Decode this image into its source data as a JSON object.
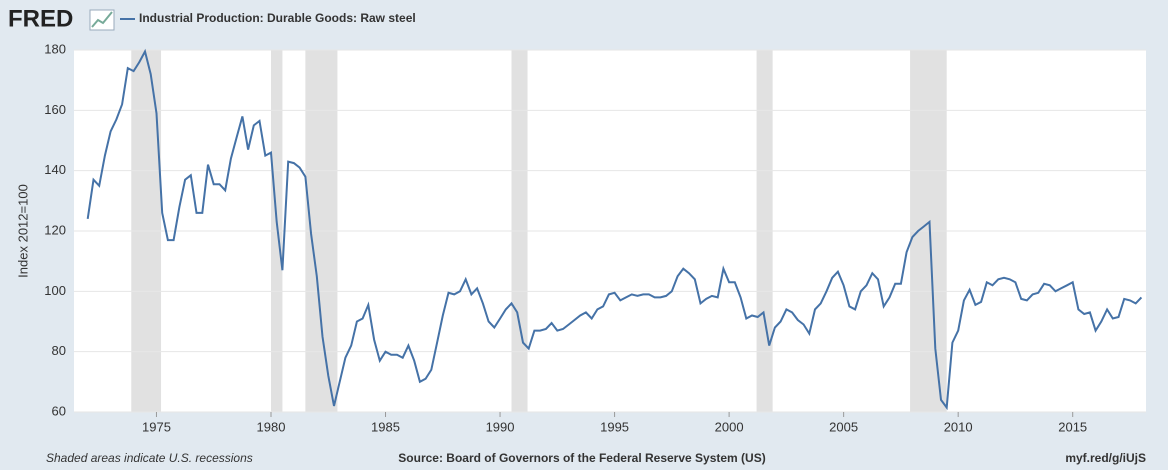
{
  "logo": "FRED",
  "chart_data": {
    "type": "line",
    "ylabel": "Index 2012=100",
    "series": [
      {
        "name": "Industrial Production: Durable Goods: Raw steel",
        "color": "#4572a7",
        "values": [
          124,
          137,
          135,
          145,
          153,
          157,
          162,
          174,
          173,
          176,
          179.5,
          172,
          159,
          126,
          117,
          117,
          128,
          137,
          138.5,
          126,
          126,
          142,
          135.5,
          135.5,
          133.5,
          144,
          151,
          158,
          147,
          155,
          156.5,
          145,
          146,
          123,
          107,
          143,
          142.5,
          141,
          138,
          119,
          105,
          85,
          72,
          62,
          70,
          78,
          82,
          90,
          91,
          95.5,
          84,
          77,
          80,
          79,
          79,
          78,
          82,
          77,
          70,
          71,
          74,
          83,
          92,
          99.5,
          99,
          100,
          104,
          99,
          101,
          96,
          90,
          88,
          91,
          94,
          96,
          93,
          83,
          81,
          87,
          87,
          87.5,
          89.5,
          87,
          87.5,
          89,
          90.5,
          92,
          93,
          91,
          94,
          95,
          99,
          99.5,
          97,
          98,
          99,
          98.5,
          99,
          99,
          98,
          98,
          98.5,
          100,
          105,
          107.5,
          106,
          104,
          96,
          97.5,
          98.5,
          98,
          107.5,
          103,
          103,
          98,
          91,
          92,
          91.5,
          93,
          82,
          88,
          90,
          94,
          93,
          90.5,
          89,
          86,
          94,
          96,
          100,
          104.5,
          106.5,
          102,
          95,
          94,
          100,
          102,
          106,
          104,
          95,
          98,
          102.5,
          102.5,
          113,
          118,
          120,
          121.5,
          123,
          81,
          64,
          61.5,
          83,
          87,
          97,
          100.5,
          95.5,
          96.5,
          103,
          102,
          104,
          104.5,
          104,
          103,
          97.5,
          97,
          99,
          99.5,
          102.5,
          102,
          100,
          101,
          102,
          103,
          94,
          92.5,
          93,
          87,
          90,
          94,
          91,
          91.5,
          97.5,
          97,
          96,
          98
        ]
      }
    ],
    "x": [
      1972,
      1972.25,
      1972.5,
      1972.75,
      1973,
      1973.25,
      1973.5,
      1973.75,
      1974,
      1974.25,
      1974.5,
      1974.75,
      1975,
      1975.25,
      1975.5,
      1975.75,
      1976,
      1976.25,
      1976.5,
      1976.75,
      1977,
      1977.25,
      1977.5,
      1977.75,
      1978,
      1978.25,
      1978.5,
      1978.75,
      1979,
      1979.25,
      1979.5,
      1979.75,
      1980,
      1980.25,
      1980.5,
      1980.75,
      1981,
      1981.25,
      1981.5,
      1981.75,
      1982,
      1982.25,
      1982.5,
      1982.75,
      1983,
      1983.25,
      1983.5,
      1983.75,
      1984,
      1984.25,
      1984.5,
      1984.75,
      1985,
      1985.25,
      1985.5,
      1985.75,
      1986,
      1986.25,
      1986.5,
      1986.75,
      1987,
      1987.25,
      1987.5,
      1987.75,
      1988,
      1988.25,
      1988.5,
      1988.75,
      1989,
      1989.25,
      1989.5,
      1989.75,
      1990,
      1990.25,
      1990.5,
      1990.75,
      1991,
      1991.25,
      1991.5,
      1991.75,
      1992,
      1992.25,
      1992.5,
      1992.75,
      1993,
      1993.25,
      1993.5,
      1993.75,
      1994,
      1994.25,
      1994.5,
      1994.75,
      1995,
      1995.25,
      1995.5,
      1995.75,
      1996,
      1996.25,
      1996.5,
      1996.75,
      1997,
      1997.25,
      1997.5,
      1997.75,
      1998,
      1998.25,
      1998.5,
      1998.75,
      1999,
      1999.25,
      1999.5,
      1999.75,
      2000,
      2000.25,
      2000.5,
      2000.75,
      2001,
      2001.25,
      2001.5,
      2001.75,
      2002,
      2002.25,
      2002.5,
      2002.75,
      2003,
      2003.25,
      2003.5,
      2003.75,
      2004,
      2004.25,
      2004.5,
      2004.75,
      2005,
      2005.25,
      2005.5,
      2005.75,
      2006,
      2006.25,
      2006.5,
      2006.75,
      2007,
      2007.25,
      2007.5,
      2007.75,
      2008,
      2008.25,
      2008.5,
      2008.75,
      2009,
      2009.25,
      2009.5,
      2009.75,
      2010,
      2010.25,
      2010.5,
      2010.75,
      2011,
      2011.25,
      2011.5,
      2011.75,
      2012,
      2012.25,
      2012.5,
      2012.75,
      2013,
      2013.25,
      2013.5,
      2013.75,
      2014,
      2014.25,
      2014.5,
      2014.75,
      2015,
      2015.25,
      2015.5,
      2015.75,
      2016,
      2016.25,
      2016.5,
      2016.75,
      2017,
      2017.25,
      2017.5,
      2017.75,
      2018
    ],
    "xlim": [
      1971.4,
      2018.2
    ],
    "xticks": [
      1975,
      1980,
      1985,
      1990,
      1995,
      2000,
      2005,
      2010,
      2015
    ],
    "ylim": [
      60,
      180
    ],
    "yticks": [
      60,
      80,
      100,
      120,
      140,
      160,
      180
    ],
    "grid": true,
    "recessions": [
      [
        1973.9,
        1975.2
      ],
      [
        1980,
        1980.5
      ],
      [
        1981.5,
        1982.9
      ],
      [
        1990.5,
        1991.2
      ],
      [
        2001.2,
        2001.9
      ],
      [
        2007.9,
        2009.5
      ]
    ],
    "recession_color": "#e1e1e1"
  },
  "footer": {
    "note": "Shaded areas indicate U.S. recessions",
    "source": "Source: Board of Governors of the Federal Reserve System (US)",
    "link": "myf.red/g/iUjS"
  }
}
